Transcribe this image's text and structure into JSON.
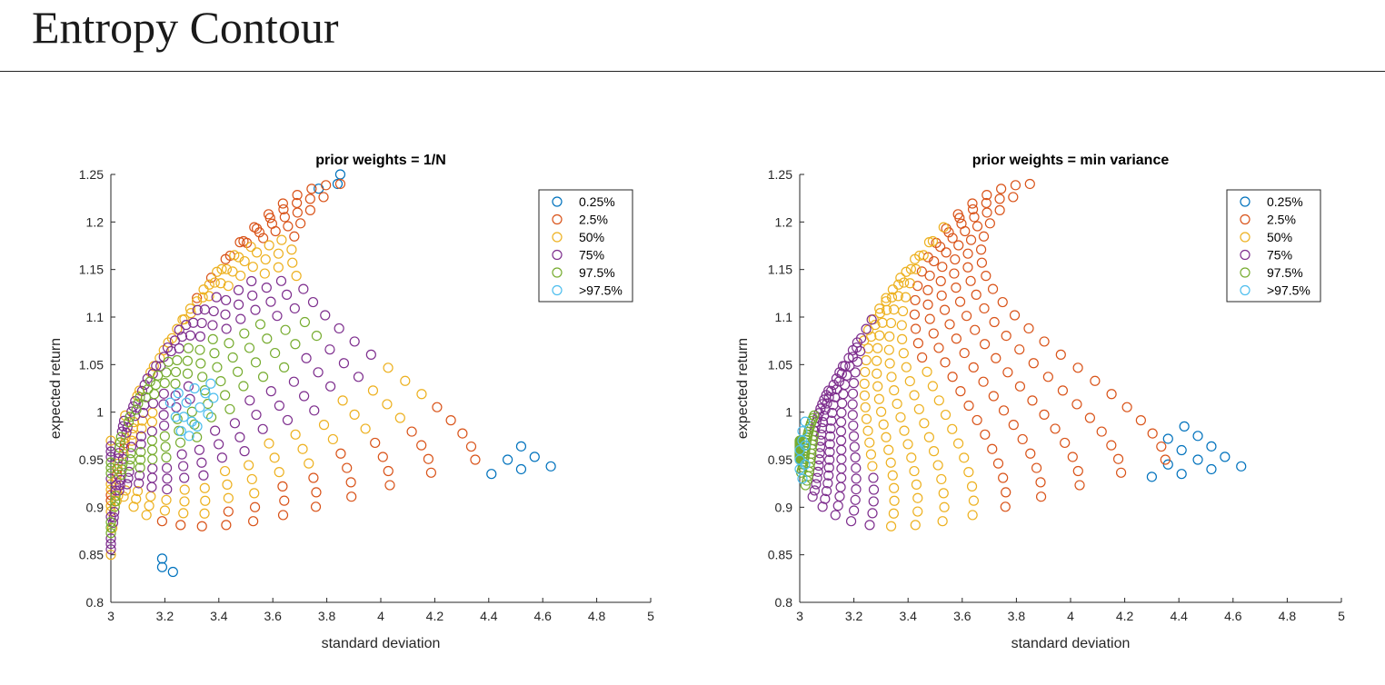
{
  "page": {
    "title": "Entropy Contour"
  },
  "chart_data": [
    {
      "type": "scatter",
      "title": "prior weights = 1/N",
      "xlabel": "standard deviation",
      "ylabel": "expected return",
      "xlim": [
        3,
        5
      ],
      "ylim": [
        0.8,
        1.25
      ],
      "xticks": [
        "3",
        "3.2",
        "3.4",
        "3.6",
        "3.8",
        "4",
        "4.2",
        "4.4",
        "4.6",
        "4.8",
        "5"
      ],
      "yticks": [
        "0.8",
        "0.85",
        "0.9",
        "0.95",
        "1",
        "1.05",
        "1.1",
        "1.15",
        "1.2",
        "1.25"
      ],
      "grid": false,
      "legend_position": "top-right",
      "marker": "open-circle",
      "series": [
        {
          "name": "0.25%",
          "color": "#0072BD",
          "points": [
            [
              3.85,
              1.25
            ],
            [
              3.84,
              1.24
            ],
            [
              3.77,
              1.235
            ],
            [
              4.63,
              0.943
            ],
            [
              4.57,
              0.953
            ],
            [
              4.52,
              0.964
            ],
            [
              4.47,
              0.95
            ],
            [
              4.52,
              0.94
            ],
            [
              4.41,
              0.935
            ],
            [
              3.19,
              0.846
            ],
            [
              3.19,
              0.837
            ],
            [
              3.23,
              0.832
            ]
          ]
        },
        {
          "name": "2.5%",
          "color": "#D95319",
          "points": []
        },
        {
          "name": "50%",
          "color": "#EDB120",
          "points": []
        },
        {
          "name": "75%",
          "color": "#7E2F8E",
          "points": []
        },
        {
          "name": "97.5%",
          "color": "#77AC30",
          "points": []
        },
        {
          "name": ">97.5%",
          "color": "#4DBEEE",
          "points": [
            [
              3.22,
              1.01
            ],
            [
              3.25,
              1.02
            ],
            [
              3.28,
              1.01
            ],
            [
              3.31,
              1.025
            ],
            [
              3.35,
              1.02
            ],
            [
              3.37,
              1.03
            ],
            [
              3.24,
              0.995
            ],
            [
              3.27,
              0.995
            ],
            [
              3.3,
              0.99
            ],
            [
              3.33,
              1.005
            ],
            [
              3.38,
              1.015
            ],
            [
              3.26,
              0.98
            ],
            [
              3.29,
              0.975
            ],
            [
              3.32,
              0.985
            ],
            [
              3.36,
              0.998
            ]
          ]
        }
      ],
      "contours": {
        "apex": [
          3.0,
          0.95
        ],
        "fan_curves": 17,
        "points_per_curve": 22,
        "band_levels": [
          "2.5%",
          "50%",
          "75%",
          "97.5%",
          "97.5%",
          "75%",
          "75%",
          "50%",
          "50%",
          "2.5%",
          "2.5%",
          "2.5%"
        ]
      }
    },
    {
      "type": "scatter",
      "title": "prior weights = min variance",
      "xlabel": "standard deviation",
      "ylabel": "expected return",
      "xlim": [
        3,
        5
      ],
      "ylim": [
        0.8,
        1.25
      ],
      "xticks": [
        "3",
        "3.2",
        "3.4",
        "3.6",
        "3.8",
        "4",
        "4.2",
        "4.4",
        "4.6",
        "4.8",
        "5"
      ],
      "yticks": [
        "0.8",
        "0.85",
        "0.9",
        "0.95",
        "1",
        "1.05",
        "1.1",
        "1.15",
        "1.2",
        "1.25"
      ],
      "grid": false,
      "legend_position": "top-right",
      "marker": "open-circle",
      "series": [
        {
          "name": "0.25%",
          "color": "#0072BD",
          "points": [
            [
              4.63,
              0.943
            ],
            [
              4.57,
              0.953
            ],
            [
              4.52,
              0.964
            ],
            [
              4.47,
              0.975
            ],
            [
              4.42,
              0.985
            ],
            [
              4.36,
              0.972
            ],
            [
              4.41,
              0.96
            ],
            [
              4.47,
              0.95
            ],
            [
              4.52,
              0.94
            ],
            [
              4.41,
              0.935
            ],
            [
              4.36,
              0.945
            ],
            [
              4.3,
              0.932
            ]
          ]
        },
        {
          "name": "2.5%",
          "color": "#D95319",
          "points": []
        },
        {
          "name": "50%",
          "color": "#EDB120",
          "points": []
        },
        {
          "name": "75%",
          "color": "#7E2F8E",
          "points": []
        },
        {
          "name": "97.5%",
          "color": "#77AC30",
          "points": []
        },
        {
          "name": ">97.5%",
          "color": "#4DBEEE",
          "points": [
            [
              3.0,
              0.94
            ],
            [
              3.0,
              0.95
            ],
            [
              3.0,
              0.96
            ],
            [
              3.01,
              0.97
            ],
            [
              3.01,
              0.98
            ],
            [
              3.02,
              0.99
            ],
            [
              3.01,
              0.93
            ],
            [
              3.02,
              0.945
            ],
            [
              3.02,
              0.965
            ]
          ]
        }
      ],
      "contours": {
        "apex": [
          3.0,
          0.95
        ],
        "fan_curves": 17,
        "points_per_curve": 22,
        "band_levels": [
          "97.5%",
          "97.5%",
          "75%",
          "75%",
          "75%",
          "50%",
          "50%",
          "50%",
          "2.5%",
          "2.5%",
          "2.5%",
          "2.5%"
        ]
      }
    }
  ]
}
